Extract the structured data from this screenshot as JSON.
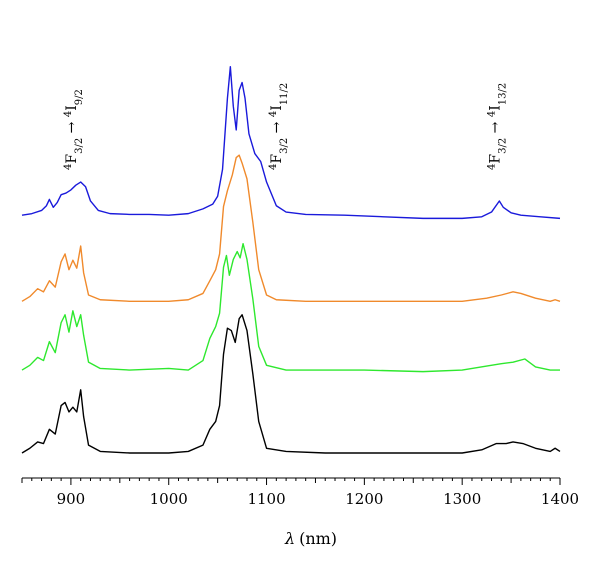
{
  "chart_data": {
    "type": "line",
    "xlabel_symbol": "λ",
    "xlabel_unit": "(nm)",
    "xlim": [
      850,
      1400
    ],
    "x_ticks": [
      900,
      1000,
      1100,
      1200,
      1300,
      1400
    ],
    "x_tick_labels": [
      "900",
      "1000",
      "1100",
      "1200",
      "1300",
      "1400"
    ],
    "grid": false,
    "annotations": [
      {
        "id": "trans-1",
        "x": 905,
        "level": "4",
        "L": "F",
        "sub1": "3/2",
        "arrow": "→",
        "level2": "4",
        "L2": "I",
        "sub2": "9/2"
      },
      {
        "id": "trans-2",
        "x": 1115,
        "level": "4",
        "L": "F",
        "sub1": "3/2",
        "arrow": "→",
        "level2": "4",
        "L2": "I",
        "sub2": "11/2"
      },
      {
        "id": "trans-3",
        "x": 1338,
        "level": "4",
        "L": "F",
        "sub1": "3/2",
        "arrow": "→",
        "level2": "4",
        "L2": "I",
        "sub2": "13/2"
      }
    ],
    "series": [
      {
        "color": "#1a1adb",
        "offset": 2.99,
        "points": [
          [
            850,
            0.02
          ],
          [
            860,
            0.04
          ],
          [
            870,
            0.08
          ],
          [
            875,
            0.14
          ],
          [
            878,
            0.22
          ],
          [
            882,
            0.12
          ],
          [
            886,
            0.18
          ],
          [
            890,
            0.28
          ],
          [
            895,
            0.3
          ],
          [
            900,
            0.34
          ],
          [
            905,
            0.4
          ],
          [
            910,
            0.44
          ],
          [
            915,
            0.38
          ],
          [
            920,
            0.2
          ],
          [
            928,
            0.08
          ],
          [
            940,
            0.04
          ],
          [
            960,
            0.03
          ],
          [
            980,
            0.03
          ],
          [
            1000,
            0.02
          ],
          [
            1020,
            0.04
          ],
          [
            1035,
            0.1
          ],
          [
            1045,
            0.16
          ],
          [
            1050,
            0.26
          ],
          [
            1055,
            0.6
          ],
          [
            1060,
            1.5
          ],
          [
            1063,
            1.9
          ],
          [
            1066,
            1.4
          ],
          [
            1069,
            1.1
          ],
          [
            1072,
            1.6
          ],
          [
            1075,
            1.7
          ],
          [
            1078,
            1.5
          ],
          [
            1082,
            1.05
          ],
          [
            1088,
            0.8
          ],
          [
            1094,
            0.7
          ],
          [
            1100,
            0.44
          ],
          [
            1110,
            0.14
          ],
          [
            1120,
            0.06
          ],
          [
            1140,
            0.03
          ],
          [
            1180,
            0.02
          ],
          [
            1220,
            0.0
          ],
          [
            1260,
            -0.02
          ],
          [
            1300,
            -0.02
          ],
          [
            1320,
            0.0
          ],
          [
            1330,
            0.06
          ],
          [
            1338,
            0.2
          ],
          [
            1342,
            0.12
          ],
          [
            1350,
            0.05
          ],
          [
            1360,
            0.02
          ],
          [
            1380,
            0.0
          ],
          [
            1400,
            -0.02
          ]
        ]
      },
      {
        "color": "#f08a2c",
        "offset": 1.92,
        "points": [
          [
            850,
            0.0
          ],
          [
            858,
            0.06
          ],
          [
            866,
            0.16
          ],
          [
            872,
            0.12
          ],
          [
            878,
            0.26
          ],
          [
            884,
            0.18
          ],
          [
            890,
            0.5
          ],
          [
            894,
            0.6
          ],
          [
            898,
            0.4
          ],
          [
            902,
            0.52
          ],
          [
            906,
            0.42
          ],
          [
            910,
            0.7
          ],
          [
            913,
            0.36
          ],
          [
            918,
            0.08
          ],
          [
            930,
            0.02
          ],
          [
            960,
            0.0
          ],
          [
            1000,
            0.0
          ],
          [
            1020,
            0.02
          ],
          [
            1035,
            0.1
          ],
          [
            1042,
            0.26
          ],
          [
            1048,
            0.4
          ],
          [
            1052,
            0.6
          ],
          [
            1056,
            1.2
          ],
          [
            1060,
            1.4
          ],
          [
            1065,
            1.6
          ],
          [
            1069,
            1.82
          ],
          [
            1072,
            1.85
          ],
          [
            1075,
            1.75
          ],
          [
            1080,
            1.55
          ],
          [
            1086,
            1.0
          ],
          [
            1092,
            0.4
          ],
          [
            1100,
            0.08
          ],
          [
            1110,
            0.02
          ],
          [
            1140,
            0.0
          ],
          [
            1200,
            0.0
          ],
          [
            1260,
            0.0
          ],
          [
            1300,
            0.0
          ],
          [
            1325,
            0.04
          ],
          [
            1340,
            0.08
          ],
          [
            1352,
            0.12
          ],
          [
            1360,
            0.1
          ],
          [
            1375,
            0.04
          ],
          [
            1390,
            0.0
          ],
          [
            1395,
            0.02
          ],
          [
            1400,
            0.0
          ]
        ]
      },
      {
        "color": "#2ee82e",
        "offset": 1.05,
        "points": [
          [
            850,
            0.0
          ],
          [
            858,
            0.06
          ],
          [
            866,
            0.16
          ],
          [
            872,
            0.12
          ],
          [
            878,
            0.36
          ],
          [
            884,
            0.22
          ],
          [
            890,
            0.6
          ],
          [
            894,
            0.7
          ],
          [
            898,
            0.48
          ],
          [
            902,
            0.75
          ],
          [
            906,
            0.55
          ],
          [
            910,
            0.7
          ],
          [
            913,
            0.44
          ],
          [
            918,
            0.1
          ],
          [
            930,
            0.02
          ],
          [
            960,
            0.0
          ],
          [
            1000,
            0.02
          ],
          [
            1020,
            0.0
          ],
          [
            1035,
            0.12
          ],
          [
            1042,
            0.4
          ],
          [
            1048,
            0.55
          ],
          [
            1052,
            0.72
          ],
          [
            1056,
            1.3
          ],
          [
            1059,
            1.45
          ],
          [
            1062,
            1.2
          ],
          [
            1066,
            1.4
          ],
          [
            1070,
            1.5
          ],
          [
            1073,
            1.42
          ],
          [
            1076,
            1.6
          ],
          [
            1080,
            1.4
          ],
          [
            1086,
            0.9
          ],
          [
            1092,
            0.3
          ],
          [
            1100,
            0.06
          ],
          [
            1120,
            0.0
          ],
          [
            1160,
            0.0
          ],
          [
            1200,
            0.0
          ],
          [
            1260,
            -0.02
          ],
          [
            1300,
            0.0
          ],
          [
            1325,
            0.05
          ],
          [
            1340,
            0.08
          ],
          [
            1352,
            0.1
          ],
          [
            1364,
            0.14
          ],
          [
            1375,
            0.04
          ],
          [
            1390,
            0.0
          ],
          [
            1400,
            0.0
          ]
        ]
      },
      {
        "color": "#000000",
        "offset": 0.0,
        "points": [
          [
            850,
            0.0
          ],
          [
            858,
            0.06
          ],
          [
            866,
            0.14
          ],
          [
            872,
            0.12
          ],
          [
            878,
            0.3
          ],
          [
            884,
            0.24
          ],
          [
            890,
            0.6
          ],
          [
            894,
            0.64
          ],
          [
            898,
            0.52
          ],
          [
            902,
            0.58
          ],
          [
            906,
            0.52
          ],
          [
            910,
            0.8
          ],
          [
            913,
            0.46
          ],
          [
            918,
            0.1
          ],
          [
            930,
            0.02
          ],
          [
            960,
            0.0
          ],
          [
            1000,
            0.0
          ],
          [
            1020,
            0.02
          ],
          [
            1035,
            0.1
          ],
          [
            1042,
            0.3
          ],
          [
            1048,
            0.4
          ],
          [
            1052,
            0.6
          ],
          [
            1056,
            1.25
          ],
          [
            1060,
            1.58
          ],
          [
            1064,
            1.55
          ],
          [
            1068,
            1.4
          ],
          [
            1072,
            1.7
          ],
          [
            1075,
            1.75
          ],
          [
            1080,
            1.55
          ],
          [
            1086,
            1.0
          ],
          [
            1092,
            0.4
          ],
          [
            1100,
            0.06
          ],
          [
            1120,
            0.02
          ],
          [
            1160,
            0.0
          ],
          [
            1200,
            0.0
          ],
          [
            1260,
            0.0
          ],
          [
            1300,
            0.0
          ],
          [
            1320,
            0.04
          ],
          [
            1335,
            0.12
          ],
          [
            1345,
            0.12
          ],
          [
            1352,
            0.14
          ],
          [
            1362,
            0.12
          ],
          [
            1375,
            0.06
          ],
          [
            1390,
            0.02
          ],
          [
            1395,
            0.06
          ],
          [
            1400,
            0.02
          ]
        ]
      }
    ]
  }
}
